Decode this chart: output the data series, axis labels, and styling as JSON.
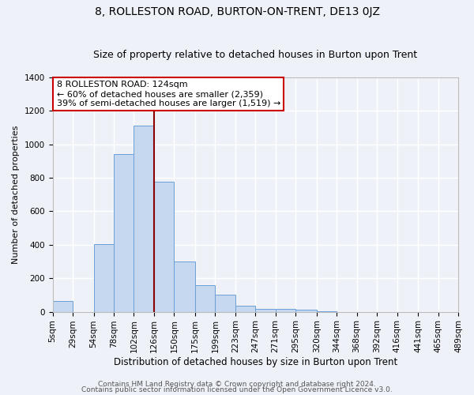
{
  "title1": "8, ROLLESTON ROAD, BURTON-ON-TRENT, DE13 0JZ",
  "title2": "Size of property relative to detached houses in Burton upon Trent",
  "xlabel": "Distribution of detached houses by size in Burton upon Trent",
  "ylabel": "Number of detached properties",
  "bin_edges": [
    5,
    29,
    54,
    78,
    102,
    126,
    150,
    175,
    199,
    223,
    247,
    271,
    295,
    320,
    344,
    368,
    392,
    416,
    441,
    465,
    489
  ],
  "bar_heights": [
    65,
    0,
    405,
    940,
    1110,
    775,
    300,
    160,
    100,
    35,
    15,
    15,
    10,
    5,
    0,
    0,
    0,
    0,
    0,
    0
  ],
  "bar_color": "#c5d8f0",
  "bar_edge_color": "#6a9fd8",
  "vline_x": 126,
  "vline_color": "#8b0000",
  "annotation_line1": "8 ROLLESTON ROAD: 124sqm",
  "annotation_line2": "← 60% of detached houses are smaller (2,359)",
  "annotation_line3": "39% of semi-detached houses are larger (1,519) →",
  "annotation_box_color": "#ffffff",
  "annotation_box_edge_color": "#cc0000",
  "ylim": [
    0,
    1400
  ],
  "yticks": [
    0,
    200,
    400,
    600,
    800,
    1000,
    1200,
    1400
  ],
  "tick_labels": [
    "5sqm",
    "29sqm",
    "54sqm",
    "78sqm",
    "102sqm",
    "126sqm",
    "150sqm",
    "175sqm",
    "199sqm",
    "223sqm",
    "247sqm",
    "271sqm",
    "295sqm",
    "320sqm",
    "344sqm",
    "368sqm",
    "392sqm",
    "416sqm",
    "441sqm",
    "465sqm",
    "489sqm"
  ],
  "footer1": "Contains HM Land Registry data © Crown copyright and database right 2024.",
  "footer2": "Contains public sector information licensed under the Open Government Licence v3.0.",
  "background_color": "#eef2f8",
  "grid_color": "#ffffff",
  "title1_fontsize": 10,
  "title2_fontsize": 9,
  "xlabel_fontsize": 8.5,
  "ylabel_fontsize": 8,
  "tick_fontsize": 7.5,
  "footer_fontsize": 6.5,
  "annot_fontsize": 8
}
